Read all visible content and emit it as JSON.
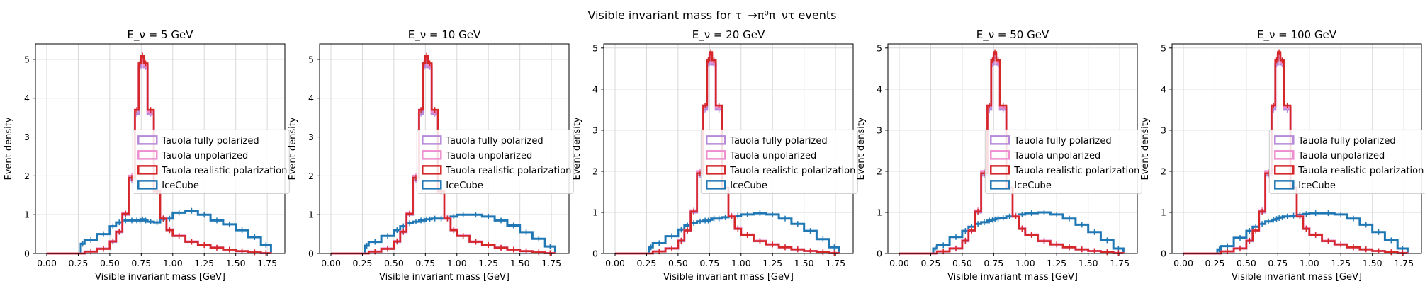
{
  "figure": {
    "suptitle": "Visible invariant mass for τ⁻→π⁰π⁻ντ events"
  },
  "legend_entries": [
    {
      "label": "Tauola fully polarized",
      "color": "#b58ad8"
    },
    {
      "label": "Tauola unpolarized",
      "color": "#ee8ecf"
    },
    {
      "label": "Tauola realistic polarization",
      "color": "#d62728"
    },
    {
      "label": "IceCube",
      "color": "#1f77b4"
    }
  ],
  "chart_data": [
    {
      "type": "line",
      "title": "E_ν = 5 GeV",
      "xlabel": "Visible invariant mass [GeV]",
      "ylabel": "Event density",
      "xlim": [
        -0.09,
        1.89
      ],
      "ylim": [
        0,
        5.4
      ],
      "xticks": [
        "0.00",
        "0.25",
        "0.50",
        "0.75",
        "1.00",
        "1.25",
        "1.50",
        "1.75"
      ],
      "yticks": [
        "0",
        "1",
        "2",
        "3",
        "4",
        "5"
      ],
      "grid": true,
      "legend_position": "center-right",
      "x": [
        0.0,
        0.1,
        0.2,
        0.27,
        0.3,
        0.4,
        0.5,
        0.55,
        0.6,
        0.65,
        0.7,
        0.73,
        0.75,
        0.77,
        0.8,
        0.85,
        0.9,
        0.95,
        1.0,
        1.1,
        1.2,
        1.3,
        1.4,
        1.5,
        1.6,
        1.7,
        1.78
      ],
      "series": [
        {
          "name": "Tauola fully polarized",
          "values": [
            0.0,
            0.0,
            0.0,
            0.0,
            0.05,
            0.12,
            0.3,
            0.55,
            1.0,
            1.9,
            3.6,
            4.8,
            5.0,
            4.8,
            3.6,
            1.6,
            0.9,
            0.6,
            0.45,
            0.3,
            0.22,
            0.15,
            0.1,
            0.06,
            0.03,
            0.01,
            0.0
          ]
        },
        {
          "name": "Tauola unpolarized",
          "values": [
            0.0,
            0.0,
            0.0,
            0.0,
            0.05,
            0.13,
            0.32,
            0.57,
            1.05,
            2.0,
            3.7,
            4.9,
            5.05,
            4.85,
            3.65,
            1.6,
            0.92,
            0.62,
            0.46,
            0.31,
            0.22,
            0.15,
            0.1,
            0.06,
            0.03,
            0.01,
            0.0
          ]
        },
        {
          "name": "Tauola realistic polarization",
          "values": [
            0.0,
            0.0,
            0.0,
            0.0,
            0.05,
            0.12,
            0.31,
            0.56,
            1.02,
            1.95,
            3.7,
            4.9,
            5.1,
            4.9,
            3.7,
            1.6,
            0.9,
            0.6,
            0.45,
            0.3,
            0.22,
            0.15,
            0.1,
            0.06,
            0.03,
            0.01,
            0.0
          ]
        },
        {
          "name": "IceCube",
          "values": [
            0.0,
            0.0,
            0.0,
            0.25,
            0.35,
            0.5,
            0.7,
            0.8,
            0.85,
            0.85,
            0.85,
            0.85,
            0.88,
            0.85,
            0.82,
            0.8,
            0.88,
            0.9,
            1.05,
            1.1,
            1.0,
            0.85,
            0.75,
            0.6,
            0.42,
            0.22,
            0.0
          ]
        }
      ]
    },
    {
      "type": "line",
      "title": "E_ν = 10 GeV",
      "xlabel": "Visible invariant mass [GeV]",
      "ylabel": "Event density",
      "xlim": [
        -0.09,
        1.89
      ],
      "ylim": [
        0,
        5.4
      ],
      "xticks": [
        "0.00",
        "0.25",
        "0.50",
        "0.75",
        "1.00",
        "1.25",
        "1.50",
        "1.75"
      ],
      "yticks": [
        "0",
        "1",
        "2",
        "3",
        "4",
        "5"
      ],
      "grid": true,
      "legend_position": "center-right",
      "x": [
        0.0,
        0.1,
        0.2,
        0.27,
        0.3,
        0.4,
        0.5,
        0.55,
        0.6,
        0.65,
        0.7,
        0.73,
        0.75,
        0.77,
        0.8,
        0.85,
        0.9,
        0.95,
        1.0,
        1.1,
        1.2,
        1.3,
        1.4,
        1.5,
        1.6,
        1.7,
        1.78
      ],
      "series": [
        {
          "name": "Tauola fully polarized",
          "values": [
            0.0,
            0.0,
            0.0,
            0.0,
            0.05,
            0.12,
            0.3,
            0.55,
            1.0,
            1.9,
            3.6,
            4.8,
            5.0,
            4.8,
            3.6,
            1.6,
            0.9,
            0.6,
            0.45,
            0.3,
            0.22,
            0.15,
            0.1,
            0.06,
            0.03,
            0.01,
            0.0
          ]
        },
        {
          "name": "Tauola unpolarized",
          "values": [
            0.0,
            0.0,
            0.0,
            0.0,
            0.05,
            0.13,
            0.32,
            0.57,
            1.05,
            2.0,
            3.7,
            4.9,
            5.05,
            4.85,
            3.65,
            1.6,
            0.92,
            0.62,
            0.46,
            0.31,
            0.22,
            0.15,
            0.1,
            0.06,
            0.03,
            0.01,
            0.0
          ]
        },
        {
          "name": "Tauola realistic polarization",
          "values": [
            0.0,
            0.0,
            0.0,
            0.0,
            0.05,
            0.12,
            0.31,
            0.56,
            1.02,
            1.95,
            3.7,
            4.9,
            5.1,
            4.9,
            3.7,
            1.6,
            0.9,
            0.6,
            0.45,
            0.3,
            0.22,
            0.15,
            0.1,
            0.06,
            0.03,
            0.01,
            0.0
          ]
        },
        {
          "name": "IceCube",
          "values": [
            0.0,
            0.0,
            0.0,
            0.2,
            0.3,
            0.45,
            0.6,
            0.7,
            0.78,
            0.82,
            0.85,
            0.85,
            0.88,
            0.88,
            0.9,
            0.9,
            0.92,
            0.95,
            1.0,
            1.0,
            0.95,
            0.85,
            0.72,
            0.55,
            0.38,
            0.18,
            0.0
          ]
        }
      ]
    },
    {
      "type": "line",
      "title": "E_ν = 20 GeV",
      "xlabel": "Visible invariant mass [GeV]",
      "ylabel": "Event density",
      "xlim": [
        -0.09,
        1.89
      ],
      "ylim": [
        0,
        5.1
      ],
      "xticks": [
        "0.00",
        "0.25",
        "0.50",
        "0.75",
        "1.00",
        "1.25",
        "1.50",
        "1.75"
      ],
      "yticks": [
        "0",
        "1",
        "2",
        "3",
        "4",
        "5"
      ],
      "grid": true,
      "legend_position": "center-right",
      "x": [
        0.0,
        0.1,
        0.2,
        0.27,
        0.3,
        0.4,
        0.5,
        0.55,
        0.6,
        0.65,
        0.7,
        0.73,
        0.75,
        0.77,
        0.8,
        0.85,
        0.9,
        0.95,
        1.0,
        1.1,
        1.2,
        1.3,
        1.4,
        1.5,
        1.6,
        1.7,
        1.78
      ],
      "series": [
        {
          "name": "Tauola fully polarized",
          "values": [
            0.0,
            0.0,
            0.0,
            0.0,
            0.05,
            0.12,
            0.3,
            0.55,
            1.0,
            1.9,
            3.5,
            4.6,
            4.8,
            4.6,
            3.5,
            1.6,
            0.9,
            0.6,
            0.45,
            0.3,
            0.22,
            0.15,
            0.1,
            0.06,
            0.03,
            0.01,
            0.0
          ]
        },
        {
          "name": "Tauola unpolarized",
          "values": [
            0.0,
            0.0,
            0.0,
            0.0,
            0.05,
            0.13,
            0.32,
            0.57,
            1.05,
            2.0,
            3.6,
            4.7,
            4.85,
            4.65,
            3.55,
            1.6,
            0.92,
            0.62,
            0.46,
            0.31,
            0.22,
            0.15,
            0.1,
            0.06,
            0.03,
            0.01,
            0.0
          ]
        },
        {
          "name": "Tauola realistic polarization",
          "values": [
            0.0,
            0.0,
            0.0,
            0.0,
            0.05,
            0.12,
            0.31,
            0.56,
            1.02,
            1.95,
            3.6,
            4.7,
            4.9,
            4.7,
            3.6,
            1.6,
            0.9,
            0.6,
            0.45,
            0.3,
            0.22,
            0.15,
            0.1,
            0.06,
            0.03,
            0.01,
            0.0
          ]
        },
        {
          "name": "IceCube",
          "values": [
            0.0,
            0.0,
            0.0,
            0.15,
            0.25,
            0.42,
            0.58,
            0.68,
            0.74,
            0.78,
            0.8,
            0.8,
            0.82,
            0.85,
            0.85,
            0.88,
            0.9,
            0.92,
            0.95,
            0.98,
            0.95,
            0.85,
            0.72,
            0.55,
            0.35,
            0.15,
            0.0
          ]
        }
      ]
    },
    {
      "type": "line",
      "title": "E_ν = 50 GeV",
      "xlabel": "Visible invariant mass [GeV]",
      "ylabel": "Event density",
      "xlim": [
        -0.09,
        1.89
      ],
      "ylim": [
        0,
        5.1
      ],
      "xticks": [
        "0.00",
        "0.25",
        "0.50",
        "0.75",
        "1.00",
        "1.25",
        "1.50",
        "1.75"
      ],
      "yticks": [
        "0",
        "1",
        "2",
        "3",
        "4",
        "5"
      ],
      "grid": true,
      "legend_position": "center-right",
      "x": [
        0.0,
        0.1,
        0.2,
        0.27,
        0.3,
        0.4,
        0.5,
        0.55,
        0.6,
        0.65,
        0.7,
        0.73,
        0.75,
        0.77,
        0.8,
        0.85,
        0.9,
        0.95,
        1.0,
        1.1,
        1.2,
        1.3,
        1.4,
        1.5,
        1.6,
        1.7,
        1.78
      ],
      "series": [
        {
          "name": "Tauola fully polarized",
          "values": [
            0.0,
            0.0,
            0.0,
            0.0,
            0.05,
            0.12,
            0.3,
            0.55,
            1.0,
            1.9,
            3.5,
            4.6,
            4.8,
            4.6,
            3.5,
            1.6,
            0.9,
            0.6,
            0.45,
            0.3,
            0.22,
            0.15,
            0.1,
            0.06,
            0.03,
            0.01,
            0.0
          ]
        },
        {
          "name": "Tauola unpolarized",
          "values": [
            0.0,
            0.0,
            0.0,
            0.0,
            0.05,
            0.13,
            0.32,
            0.57,
            1.05,
            2.0,
            3.6,
            4.7,
            4.85,
            4.65,
            3.55,
            1.6,
            0.92,
            0.62,
            0.46,
            0.31,
            0.22,
            0.15,
            0.1,
            0.06,
            0.03,
            0.01,
            0.0
          ]
        },
        {
          "name": "Tauola realistic polarization",
          "values": [
            0.0,
            0.0,
            0.0,
            0.0,
            0.05,
            0.12,
            0.31,
            0.56,
            1.02,
            1.95,
            3.6,
            4.7,
            4.9,
            4.7,
            3.6,
            1.6,
            0.9,
            0.6,
            0.45,
            0.3,
            0.22,
            0.15,
            0.1,
            0.06,
            0.03,
            0.01,
            0.0
          ]
        },
        {
          "name": "IceCube",
          "values": [
            0.0,
            0.0,
            0.0,
            0.12,
            0.2,
            0.4,
            0.55,
            0.65,
            0.72,
            0.76,
            0.8,
            0.82,
            0.83,
            0.85,
            0.87,
            0.9,
            0.92,
            0.95,
            0.98,
            1.0,
            0.95,
            0.85,
            0.7,
            0.52,
            0.32,
            0.12,
            0.0
          ]
        }
      ]
    },
    {
      "type": "line",
      "title": "E_ν = 100 GeV",
      "xlabel": "Visible invariant mass [GeV]",
      "ylabel": "Event density",
      "xlim": [
        -0.09,
        1.89
      ],
      "ylim": [
        0,
        5.1
      ],
      "xticks": [
        "0.00",
        "0.25",
        "0.50",
        "0.75",
        "1.00",
        "1.25",
        "1.50",
        "1.75"
      ],
      "yticks": [
        "0",
        "1",
        "2",
        "3",
        "4",
        "5"
      ],
      "grid": true,
      "legend_position": "center-right",
      "x": [
        0.0,
        0.1,
        0.2,
        0.27,
        0.3,
        0.4,
        0.5,
        0.55,
        0.6,
        0.65,
        0.7,
        0.73,
        0.75,
        0.77,
        0.8,
        0.85,
        0.9,
        0.95,
        1.0,
        1.1,
        1.2,
        1.3,
        1.4,
        1.5,
        1.6,
        1.7,
        1.78
      ],
      "series": [
        {
          "name": "Tauola fully polarized",
          "values": [
            0.0,
            0.0,
            0.0,
            0.0,
            0.05,
            0.12,
            0.3,
            0.55,
            1.0,
            1.9,
            3.5,
            4.6,
            4.8,
            4.6,
            3.5,
            1.6,
            0.9,
            0.6,
            0.45,
            0.3,
            0.22,
            0.15,
            0.1,
            0.06,
            0.03,
            0.01,
            0.0
          ]
        },
        {
          "name": "Tauola unpolarized",
          "values": [
            0.0,
            0.0,
            0.0,
            0.0,
            0.05,
            0.13,
            0.32,
            0.57,
            1.05,
            2.0,
            3.6,
            4.7,
            4.85,
            4.65,
            3.55,
            1.6,
            0.92,
            0.62,
            0.46,
            0.31,
            0.22,
            0.15,
            0.1,
            0.06,
            0.03,
            0.01,
            0.0
          ]
        },
        {
          "name": "Tauola realistic polarization",
          "values": [
            0.0,
            0.0,
            0.0,
            0.0,
            0.05,
            0.12,
            0.31,
            0.56,
            1.02,
            1.95,
            3.6,
            4.7,
            4.9,
            4.7,
            3.6,
            1.6,
            0.9,
            0.6,
            0.45,
            0.3,
            0.22,
            0.15,
            0.1,
            0.06,
            0.03,
            0.01,
            0.0
          ]
        },
        {
          "name": "IceCube",
          "values": [
            0.0,
            0.0,
            0.0,
            0.1,
            0.18,
            0.38,
            0.55,
            0.65,
            0.72,
            0.78,
            0.82,
            0.84,
            0.86,
            0.88,
            0.9,
            0.92,
            0.94,
            0.96,
            0.98,
            0.98,
            0.95,
            0.85,
            0.7,
            0.52,
            0.32,
            0.12,
            0.0
          ]
        }
      ]
    }
  ]
}
